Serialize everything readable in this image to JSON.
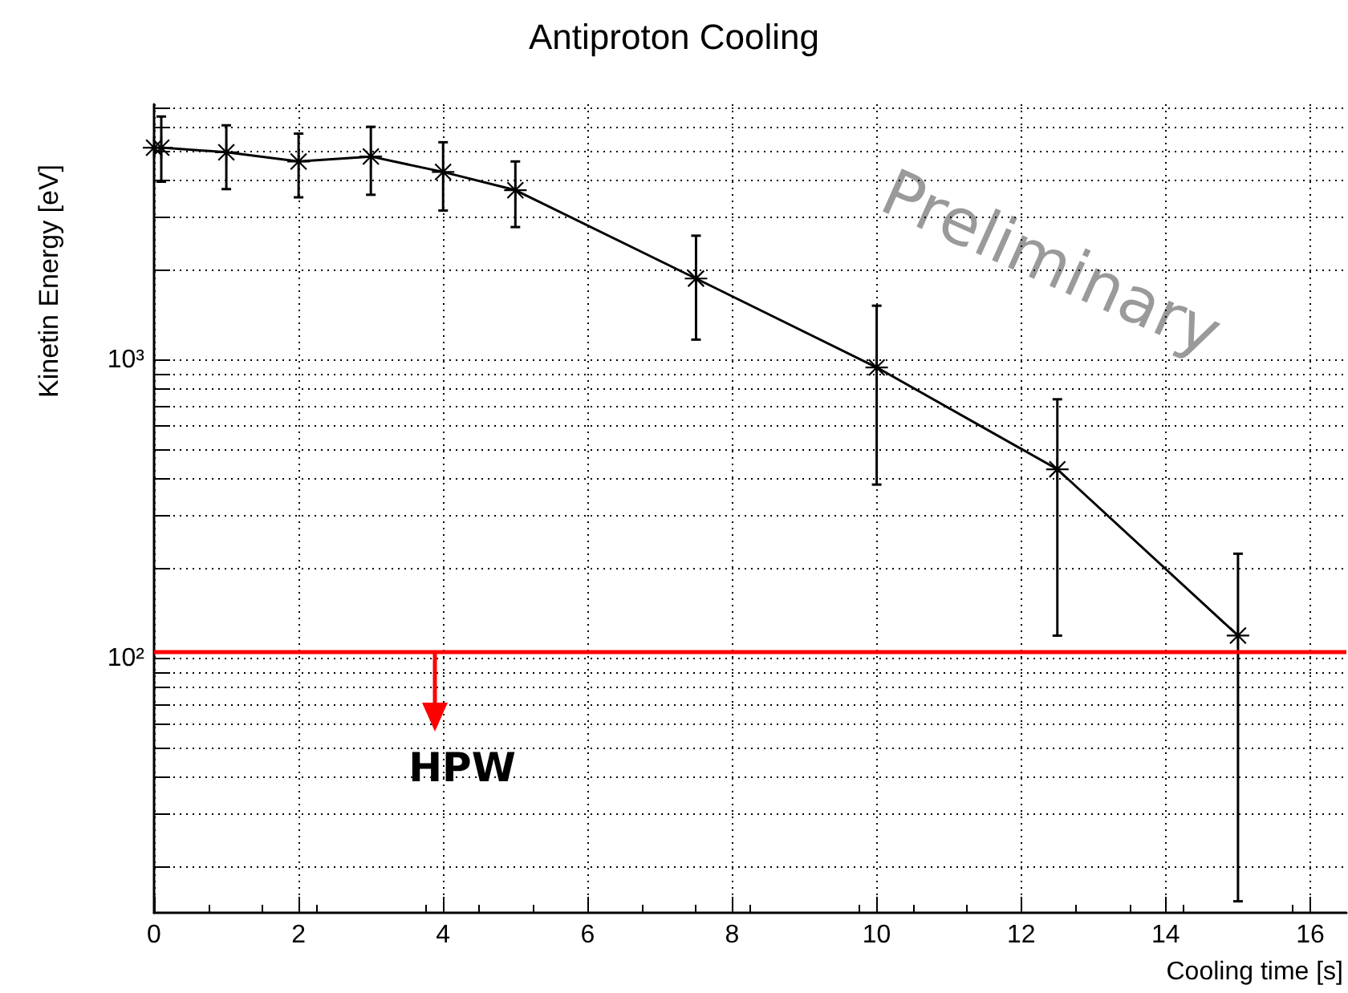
{
  "chart_data": {
    "type": "line",
    "title": "Antiproton Cooling",
    "xlabel": "Cooling time [s]",
    "ylabel": "Kinetin Energy [eV]",
    "x": [
      0,
      0.1,
      1,
      2,
      3,
      4,
      5,
      7.5,
      10,
      12.5,
      15
    ],
    "series": [
      {
        "color": "#000000",
        "values": [
          5150,
          5150,
          4970,
          4630,
          4810,
          4270,
          3710,
          1875,
          944,
          430,
          119
        ],
        "errors": [
          null,
          [
            3960,
            6550
          ],
          [
            3740,
            6120
          ],
          [
            3510,
            5740
          ],
          [
            3580,
            6050
          ],
          [
            3170,
            5370
          ],
          [
            2790,
            4630
          ],
          [
            1170,
            2610
          ],
          [
            382,
            1520
          ],
          [
            119,
            738
          ],
          [
            15.3,
            224
          ]
        ]
      }
    ],
    "xlim": [
      0,
      16.5
    ],
    "xticks": [
      0,
      2,
      4,
      6,
      8,
      10,
      12,
      14,
      16
    ],
    "ylim": [
      14,
      7200
    ],
    "yticks": [
      {
        "value": 20,
        "label": null
      },
      {
        "value": 30,
        "label": null
      },
      {
        "value": 40,
        "label": null
      },
      {
        "value": 50,
        "label": null
      },
      {
        "value": 60,
        "label": null
      },
      {
        "value": 70,
        "label": null
      },
      {
        "value": 80,
        "label": null
      },
      {
        "value": 90,
        "label": null
      },
      {
        "value": 100,
        "label": "10²"
      },
      {
        "value": 200,
        "label": null
      },
      {
        "value": 300,
        "label": null
      },
      {
        "value": 400,
        "label": null
      },
      {
        "value": 500,
        "label": null
      },
      {
        "value": 600,
        "label": null
      },
      {
        "value": 700,
        "label": null
      },
      {
        "value": 800,
        "label": null
      },
      {
        "value": 900,
        "label": null
      },
      {
        "value": 1000,
        "label": "10³"
      },
      {
        "value": 2000,
        "label": null
      },
      {
        "value": 3000,
        "label": null
      },
      {
        "value": 4000,
        "label": null
      },
      {
        "value": 5000,
        "label": null
      },
      {
        "value": 6000,
        "label": null
      },
      {
        "value": 7000,
        "label": null
      }
    ],
    "log": "y",
    "grid": true,
    "marker": "star",
    "line_style": "solid",
    "ref_lines": [
      {
        "axis": "y",
        "value": 105,
        "label": "HPW",
        "color": "#ff0000"
      }
    ],
    "annotations": [
      "Preliminary"
    ]
  }
}
